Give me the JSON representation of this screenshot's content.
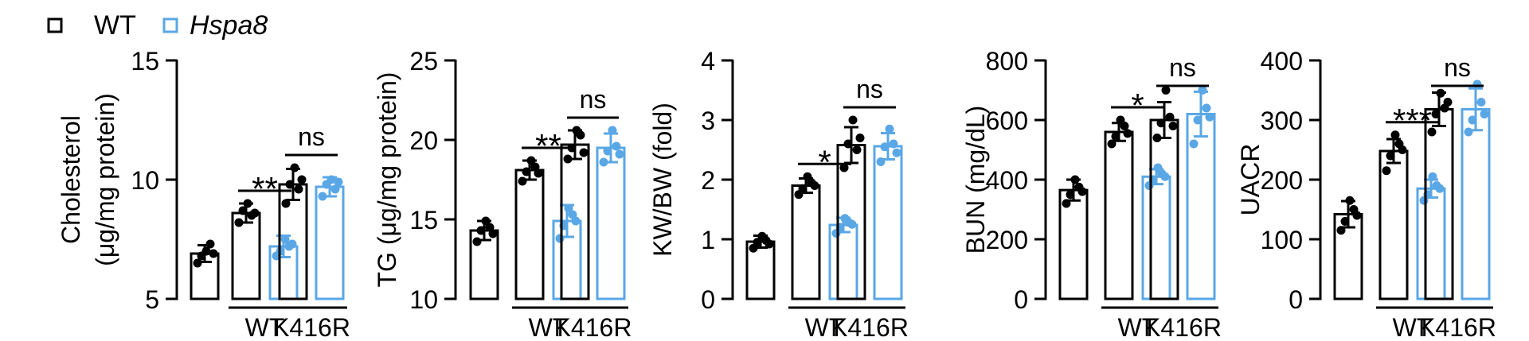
{
  "legend": [
    {
      "label": "WT",
      "color": "#000000",
      "italic": false
    },
    {
      "label": "Hspa8",
      "color": "#5aa7e6",
      "italic": true
    }
  ],
  "colors": {
    "wt": "#000000",
    "hspa8": "#5aa7e6",
    "axis": "#000000"
  },
  "chart_data": [
    {
      "type": "bar",
      "ylabel_lines": [
        "Cholesterol",
        "(μg/mg protein)"
      ],
      "ylim": [
        5,
        15
      ],
      "yticks": [
        5,
        10,
        15
      ],
      "categories": [
        "",
        "WT",
        "K416R"
      ],
      "series": [
        {
          "name": "WT",
          "values": [
            6.9,
            8.6,
            9.8
          ],
          "errors": [
            0.35,
            0.4,
            0.65
          ]
        },
        {
          "name": "Hspa8",
          "values": [
            null,
            7.2,
            9.7
          ],
          "errors": [
            null,
            0.45,
            0.4
          ]
        }
      ],
      "points": {
        "WT": [
          [
            6.5,
            6.8,
            7.0,
            7.3,
            6.9
          ],
          [
            8.2,
            8.7,
            9.0,
            8.5,
            8.6
          ],
          [
            9.0,
            9.8,
            10.5,
            9.6,
            10.0
          ]
        ],
        "Hspa8": [
          [],
          [
            6.8,
            7.0,
            7.5,
            7.2,
            7.3
          ],
          [
            9.3,
            9.8,
            10.0,
            9.6,
            9.9
          ]
        ]
      },
      "significance": [
        "**",
        "ns"
      ]
    },
    {
      "type": "bar",
      "ylabel_lines": [
        "TG (μg/mg protein)"
      ],
      "ylim": [
        10,
        25
      ],
      "yticks": [
        10,
        15,
        20,
        25
      ],
      "categories": [
        "",
        "WT",
        "K416R"
      ],
      "series": [
        {
          "name": "WT",
          "values": [
            14.3,
            18.1,
            19.7
          ],
          "errors": [
            0.6,
            0.6,
            0.9
          ]
        },
        {
          "name": "Hspa8",
          "values": [
            null,
            14.9,
            19.5
          ],
          "errors": [
            null,
            1.0,
            0.9
          ]
        }
      ],
      "points": {
        "WT": [
          [
            13.6,
            14.3,
            14.9,
            14.5,
            14.1
          ],
          [
            17.4,
            18.0,
            18.7,
            18.3,
            17.9
          ],
          [
            18.8,
            19.5,
            20.6,
            20.3,
            19.2
          ]
        ],
        "Hspa8": [
          [],
          [
            13.8,
            14.6,
            15.7,
            15.3,
            14.9
          ],
          [
            18.6,
            19.3,
            20.6,
            19.6,
            19.1
          ]
        ]
      },
      "significance": [
        "**",
        "ns"
      ]
    },
    {
      "type": "bar",
      "ylabel_lines": [
        "KW/BW (fold)"
      ],
      "ylim": [
        0,
        4
      ],
      "yticks": [
        0,
        1,
        2,
        3,
        4
      ],
      "categories": [
        "",
        "WT",
        "K416R"
      ],
      "series": [
        {
          "name": "WT",
          "values": [
            0.96,
            1.9,
            2.58
          ],
          "errors": [
            0.1,
            0.12,
            0.3
          ]
        },
        {
          "name": "Hspa8",
          "values": [
            null,
            1.24,
            2.56
          ],
          "errors": [
            null,
            0.12,
            0.22
          ]
        }
      ],
      "points": {
        "WT": [
          [
            0.85,
            0.95,
            1.05,
            0.98,
            0.92
          ],
          [
            1.75,
            1.85,
            2.05,
            1.95,
            1.9
          ],
          [
            2.2,
            2.6,
            3.0,
            2.5,
            2.7
          ]
        ],
        "Hspa8": [
          [],
          [
            1.1,
            1.2,
            1.35,
            1.28,
            1.25
          ],
          [
            2.3,
            2.55,
            2.85,
            2.6,
            2.45
          ]
        ]
      },
      "significance": [
        "*",
        "ns"
      ]
    },
    {
      "type": "bar",
      "ylabel_lines": [
        "BUN (mg/dL)"
      ],
      "ylim": [
        0,
        800
      ],
      "yticks": [
        0,
        200,
        400,
        600,
        800
      ],
      "categories": [
        "",
        "WT",
        "K416R"
      ],
      "series": [
        {
          "name": "WT",
          "values": [
            365,
            560,
            600
          ],
          "errors": [
            35,
            30,
            60
          ]
        },
        {
          "name": "Hspa8",
          "values": [
            null,
            410,
            620
          ],
          "errors": [
            null,
            25,
            75
          ]
        }
      ],
      "points": {
        "WT": [
          [
            320,
            350,
            400,
            375,
            360
          ],
          [
            520,
            545,
            600,
            580,
            555
          ],
          [
            540,
            590,
            700,
            610,
            580
          ]
        ],
        "Hspa8": [
          [],
          [
            380,
            400,
            440,
            420,
            410
          ],
          [
            520,
            600,
            700,
            640,
            610
          ]
        ]
      },
      "significance": [
        "*",
        "ns"
      ]
    },
    {
      "type": "bar",
      "ylabel_lines": [
        "UACR"
      ],
      "ylim": [
        0,
        400
      ],
      "yticks": [
        0,
        100,
        200,
        300,
        400
      ],
      "categories": [
        "",
        "WT",
        "K416R"
      ],
      "series": [
        {
          "name": "WT",
          "values": [
            142,
            248,
            318
          ],
          "errors": [
            22,
            20,
            28
          ]
        },
        {
          "name": "Hspa8",
          "values": [
            null,
            185,
            318
          ],
          "errors": [
            null,
            15,
            35
          ]
        }
      ],
      "points": {
        "WT": [
          [
            115,
            130,
            165,
            150,
            140
          ],
          [
            215,
            240,
            275,
            260,
            250
          ],
          [
            280,
            310,
            345,
            320,
            330
          ]
        ],
        "Hspa8": [
          [],
          [
            165,
            175,
            205,
            190,
            185
          ],
          [
            280,
            300,
            360,
            330,
            310
          ]
        ]
      },
      "significance": [
        "***",
        "ns"
      ]
    }
  ]
}
